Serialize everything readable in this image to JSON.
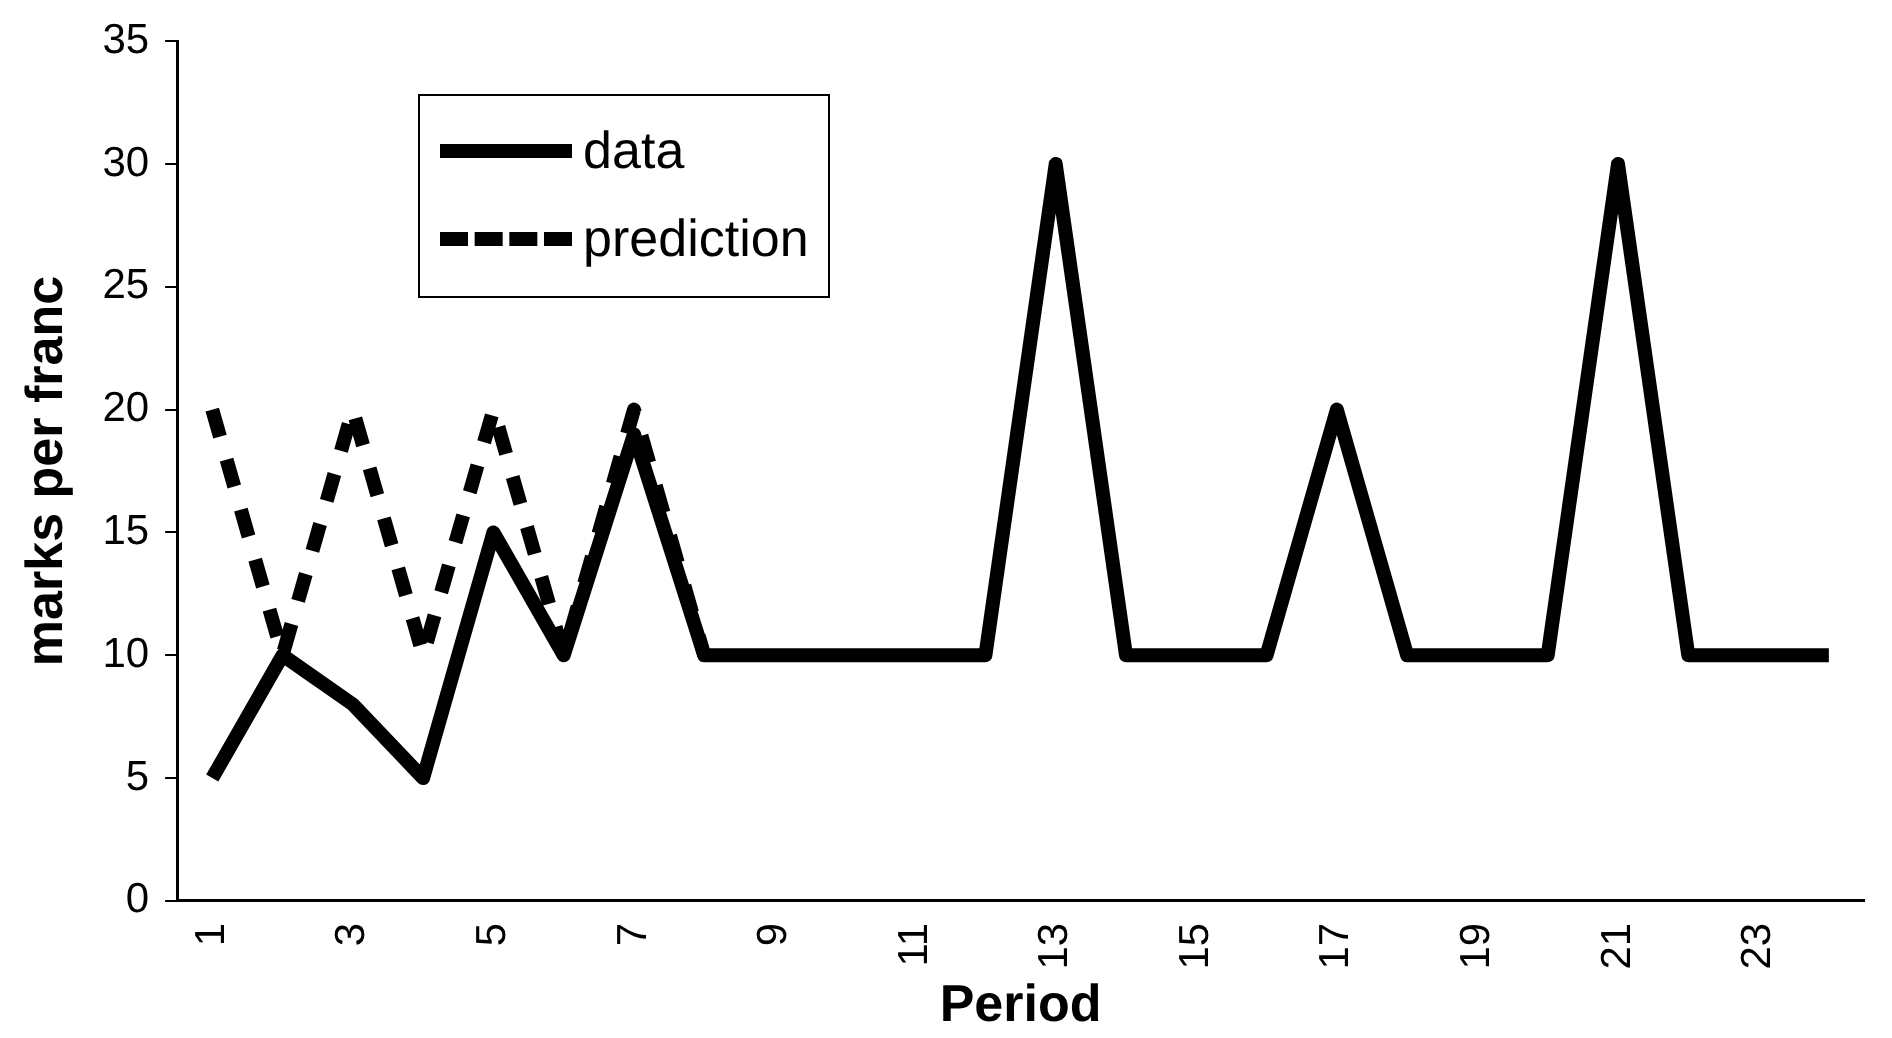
{
  "chart_data": {
    "type": "line",
    "xlabel": "Period",
    "ylabel": "marks per franc",
    "categories": [
      "1",
      null,
      "3",
      null,
      "5",
      null,
      "7",
      null,
      "9",
      null,
      "11",
      null,
      "13",
      null,
      "15",
      null,
      "17",
      null,
      "19",
      null,
      "21",
      null,
      "23",
      null
    ],
    "series": [
      {
        "name": "data",
        "color": "#000000",
        "line_style": "solid",
        "values": [
          5,
          10,
          8,
          5,
          15,
          10,
          19,
          10,
          10,
          10,
          10,
          10,
          30,
          10,
          10,
          10,
          20,
          10,
          10,
          10,
          30,
          10,
          10,
          10
        ]
      },
      {
        "name": "prediction",
        "color": "#000000",
        "line_style": "dashed",
        "values": [
          20,
          10,
          20,
          10,
          20,
          10,
          20,
          10,
          null,
          null,
          null,
          null,
          null,
          null,
          null,
          null,
          null,
          null,
          null,
          null,
          null,
          null,
          null,
          null
        ]
      }
    ],
    "ylim": [
      0,
      35
    ],
    "yticks": [
      0,
      5,
      10,
      15,
      20,
      25,
      30,
      35
    ],
    "grid": false,
    "legend": "top left",
    "marker": "none"
  }
}
